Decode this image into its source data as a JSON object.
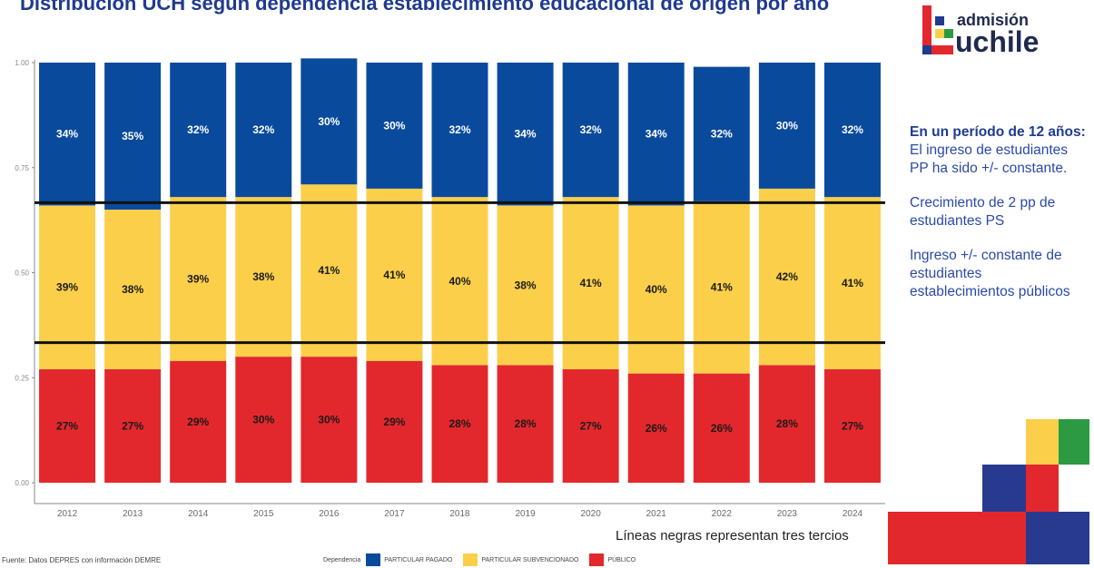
{
  "title": "Distribución UCH según dependencia establecimiento educacional de origen por año",
  "chart_data": {
    "type": "bar",
    "stacked": true,
    "categories": [
      "2012",
      "2013",
      "2014",
      "2015",
      "2016",
      "2017",
      "2018",
      "2019",
      "2020",
      "2021",
      "2022",
      "2023",
      "2024"
    ],
    "series": [
      {
        "name": "PÚBLICO",
        "color": "#e3282d",
        "values": [
          0.27,
          0.27,
          0.29,
          0.3,
          0.3,
          0.29,
          0.28,
          0.28,
          0.27,
          0.26,
          0.26,
          0.28,
          0.27
        ],
        "labels": [
          "27%",
          "27%",
          "29%",
          "30%",
          "30%",
          "29%",
          "28%",
          "28%",
          "27%",
          "26%",
          "26%",
          "28%",
          "27%"
        ],
        "label_color": "#1a1a1a"
      },
      {
        "name": "PARTICULAR SUBVENCIONADO",
        "color": "#fbcf4a",
        "values": [
          0.39,
          0.38,
          0.39,
          0.38,
          0.41,
          0.41,
          0.4,
          0.38,
          0.41,
          0.4,
          0.41,
          0.42,
          0.41
        ],
        "labels": [
          "39%",
          "38%",
          "39%",
          "38%",
          "41%",
          "41%",
          "40%",
          "38%",
          "41%",
          "40%",
          "41%",
          "42%",
          "41%"
        ],
        "label_color": "#1a1a1a"
      },
      {
        "name": "PARTICULAR PAGADO",
        "color": "#0a4a9c",
        "values": [
          0.34,
          0.35,
          0.32,
          0.32,
          0.3,
          0.3,
          0.32,
          0.34,
          0.32,
          0.34,
          0.32,
          0.3,
          0.32
        ],
        "labels": [
          "34%",
          "35%",
          "32%",
          "32%",
          "30%",
          "30%",
          "32%",
          "34%",
          "32%",
          "34%",
          "32%",
          "30%",
          "32%"
        ],
        "label_color": "#ffffff"
      }
    ],
    "ylim": [
      0,
      1
    ],
    "yticks": [
      "0.00",
      "0.25",
      "0.50",
      "0.75",
      "1.00"
    ],
    "reference_lines": [
      0.3333,
      0.6667
    ],
    "legend_title": "Dependencia",
    "legend_position": "bottom"
  },
  "note": "Líneas negras representan tres tercios",
  "source": "Fuente: Datos DEPRES con información DEMRE",
  "logo": {
    "line1": "admisión",
    "line2": "uchile"
  },
  "sidebar": {
    "p1_bold": "En un período de 12 años:",
    "p1_text": "El ingreso de estudiantes PP ha sido +/- constante.",
    "p2": "Crecimiento de 2 pp de estudiantes PS",
    "p3": "Ingreso +/- constante de estudiantes establecimientos públicos"
  }
}
